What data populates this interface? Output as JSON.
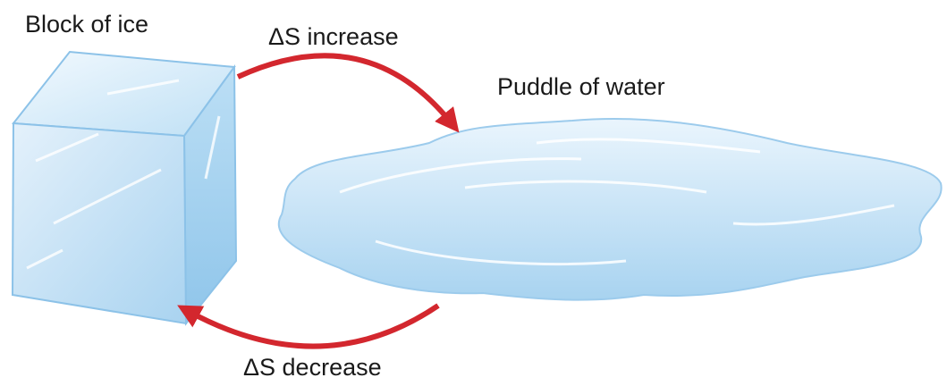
{
  "labels": {
    "ice": "Block of ice",
    "water": "Puddle of water",
    "increase": "ΔS increase",
    "decrease": "ΔS decrease"
  }
}
